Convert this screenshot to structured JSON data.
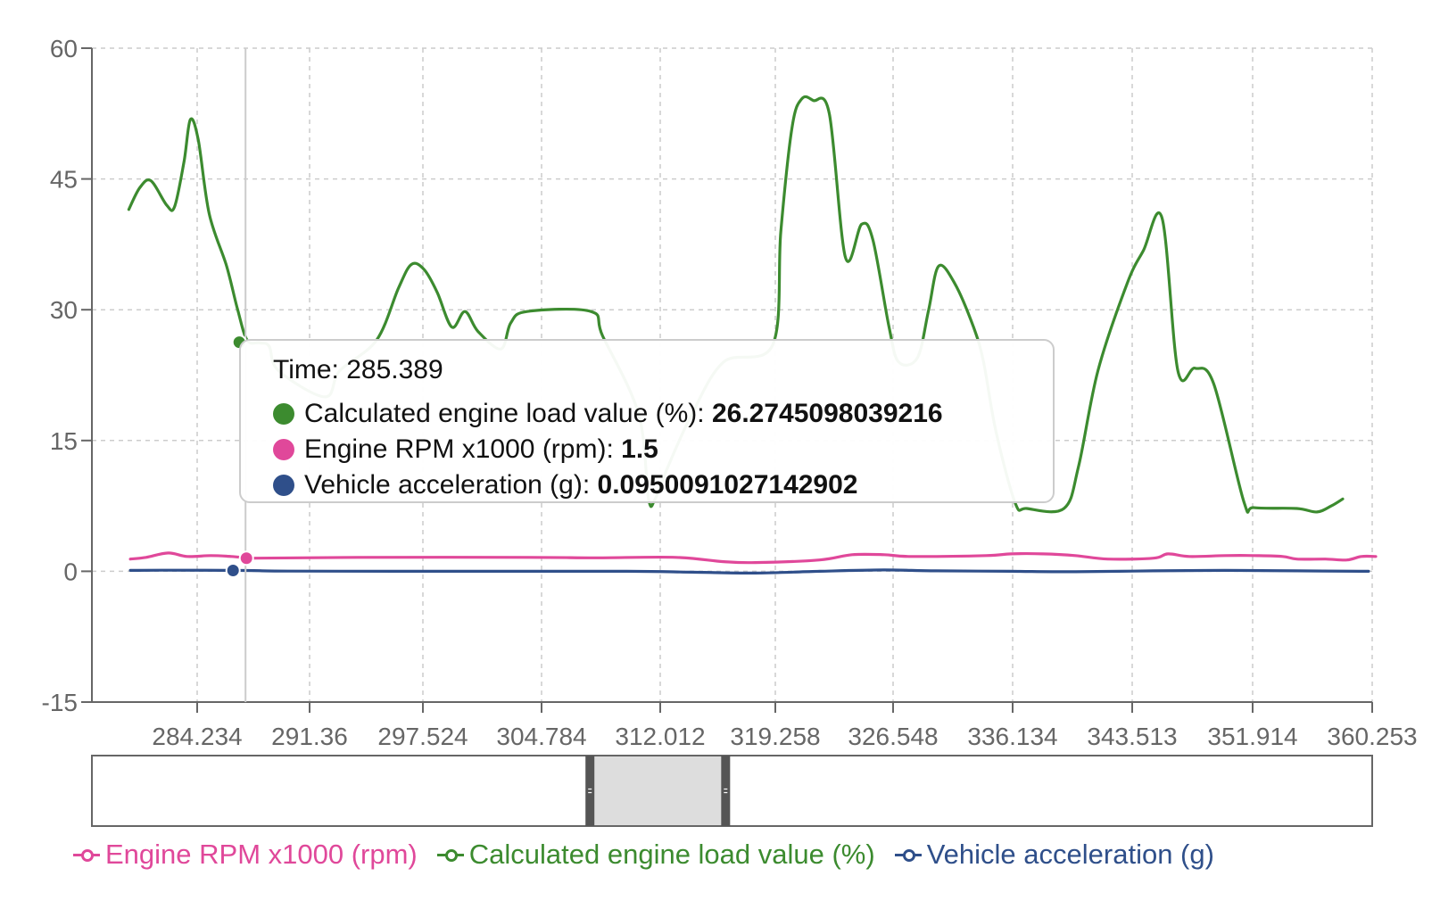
{
  "chart_data": {
    "type": "line",
    "x_ticks": [
      "284.234",
      "291.36",
      "297.524",
      "304.784",
      "312.012",
      "319.258",
      "326.548",
      "336.134",
      "343.513",
      "351.914",
      "360.253"
    ],
    "y_ticks": [
      -15,
      0,
      15,
      30,
      45,
      60
    ],
    "ylim": [
      -15,
      60
    ],
    "grid": true,
    "legend_position": "bottom",
    "series": [
      {
        "name": "Calculated engine load value (%)",
        "color": "#3c8b2f",
        "points": [
          [
            279.9,
            41.5
          ],
          [
            280.6,
            44.0
          ],
          [
            281.3,
            44.8
          ],
          [
            282.3,
            42.0
          ],
          [
            282.8,
            41.8
          ],
          [
            283.4,
            47.0
          ],
          [
            283.8,
            51.8
          ],
          [
            284.3,
            49.5
          ],
          [
            285.0,
            41.0
          ],
          [
            286.1,
            35.0
          ],
          [
            286.8,
            30.0
          ],
          [
            287.4,
            26.5
          ],
          [
            288.2,
            26.2
          ],
          [
            288.8,
            25.8
          ],
          [
            289.4,
            23.0
          ],
          [
            292.2,
            20.0
          ],
          [
            293.0,
            23.0
          ],
          [
            295.0,
            26.5
          ],
          [
            296.2,
            32.5
          ],
          [
            296.9,
            35.2
          ],
          [
            297.6,
            34.6
          ],
          [
            298.4,
            32.0
          ],
          [
            299.3,
            28.0
          ],
          [
            300.1,
            29.8
          ],
          [
            300.9,
            27.5
          ],
          [
            302.3,
            25.5
          ],
          [
            302.9,
            28.5
          ],
          [
            303.9,
            29.8
          ],
          [
            307.8,
            29.8
          ],
          [
            308.5,
            27.0
          ],
          [
            310.7,
            18.0
          ],
          [
            311.3,
            8.3
          ],
          [
            311.7,
            8.3
          ],
          [
            312.5,
            12.0
          ],
          [
            314.0,
            18.0
          ],
          [
            316.0,
            24.0
          ],
          [
            319.1,
            26.0
          ],
          [
            319.6,
            39.0
          ],
          [
            320.3,
            51.0
          ],
          [
            320.9,
            54.2
          ],
          [
            321.6,
            54.0
          ],
          [
            322.6,
            52.5
          ],
          [
            323.6,
            36.0
          ],
          [
            324.6,
            39.8
          ],
          [
            325.3,
            38.0
          ],
          [
            326.3,
            28.0
          ],
          [
            327.0,
            24.0
          ],
          [
            328.5,
            24.5
          ],
          [
            329.4,
            30.0
          ],
          [
            330.2,
            35.0
          ],
          [
            331.5,
            33.0
          ],
          [
            333.0,
            28.0
          ],
          [
            333.8,
            24.0
          ],
          [
            334.8,
            16.0
          ],
          [
            336.3,
            7.8
          ],
          [
            337.0,
            7.2
          ],
          [
            339.3,
            7.2
          ],
          [
            340.2,
            12.0
          ],
          [
            341.4,
            23.0
          ],
          [
            343.2,
            33.0
          ],
          [
            344.3,
            36.8
          ],
          [
            345.6,
            40.5
          ],
          [
            346.7,
            23.0
          ],
          [
            347.9,
            23.3
          ],
          [
            349.2,
            21.5
          ],
          [
            351.3,
            8.0
          ],
          [
            352.0,
            7.3
          ],
          [
            355.0,
            7.2
          ],
          [
            356.4,
            6.8
          ],
          [
            357.4,
            7.5
          ],
          [
            358.2,
            8.3
          ]
        ]
      },
      {
        "name": "Engine RPM x1000 (rpm)",
        "color": "#e0489a",
        "points": [
          [
            280.0,
            1.4
          ],
          [
            281.0,
            1.6
          ],
          [
            282.4,
            2.1
          ],
          [
            283.6,
            1.7
          ],
          [
            285.1,
            1.8
          ],
          [
            286.4,
            1.7
          ],
          [
            287.3,
            1.55
          ],
          [
            288.0,
            1.5
          ],
          [
            294.0,
            1.6
          ],
          [
            304.0,
            1.6
          ],
          [
            308.0,
            1.55
          ],
          [
            313.0,
            1.6
          ],
          [
            316.0,
            1.1
          ],
          [
            318.0,
            1.0
          ],
          [
            322.0,
            1.3
          ],
          [
            324.0,
            1.9
          ],
          [
            326.0,
            1.9
          ],
          [
            328.0,
            1.7
          ],
          [
            334.0,
            1.8
          ],
          [
            336.0,
            2.0
          ],
          [
            338.0,
            2.0
          ],
          [
            340.0,
            1.8
          ],
          [
            342.0,
            1.4
          ],
          [
            345.0,
            1.5
          ],
          [
            346.0,
            2.0
          ],
          [
            347.5,
            1.7
          ],
          [
            350.0,
            1.8
          ],
          [
            352.0,
            1.8
          ],
          [
            354.0,
            1.7
          ],
          [
            355.0,
            1.4
          ],
          [
            357.0,
            1.4
          ],
          [
            358.5,
            1.3
          ],
          [
            359.5,
            1.7
          ],
          [
            360.5,
            1.7
          ]
        ]
      },
      {
        "name": "Vehicle acceleration (g)",
        "color": "#2f4f8a",
        "points": [
          [
            280.0,
            0.1
          ],
          [
            282.0,
            0.12
          ],
          [
            287.3,
            0.095
          ],
          [
            290.0,
            0.02
          ],
          [
            300.0,
            0.0
          ],
          [
            310.0,
            0.0
          ],
          [
            314.0,
            -0.1
          ],
          [
            318.0,
            -0.2
          ],
          [
            322.0,
            0.0
          ],
          [
            326.0,
            0.15
          ],
          [
            330.0,
            0.05
          ],
          [
            336.0,
            0.0
          ],
          [
            340.0,
            -0.05
          ],
          [
            345.0,
            0.05
          ],
          [
            350.0,
            0.1
          ],
          [
            355.0,
            0.05
          ],
          [
            360.0,
            0.0
          ]
        ]
      }
    ],
    "hover": {
      "x": 287.3,
      "label": "Time: 285.389",
      "rows": [
        {
          "name": "Calculated engine load value (%)",
          "value": "26.2745098039216",
          "y": 26.27,
          "color": "#3c8b2f"
        },
        {
          "name": "Engine RPM x1000 (rpm)",
          "value": "1.5",
          "y": 1.5,
          "color": "#e0489a"
        },
        {
          "name": "Vehicle acceleration (g)",
          "value": "0.0950091027142902",
          "y": 0.095,
          "color": "#2f4f8a"
        }
      ]
    },
    "brush": {
      "selection_start_fraction": 0.389,
      "selection_end_fraction": 0.495
    }
  },
  "legend": [
    {
      "name": "Engine RPM x1000 (rpm)",
      "color": "#e0489a"
    },
    {
      "name": "Calculated engine load value (%)",
      "color": "#3c8b2f"
    },
    {
      "name": "Vehicle acceleration (g)",
      "color": "#2f4f8a"
    }
  ],
  "colors": {
    "axis": "#666666",
    "grid": "#cccccc",
    "brush_fill": "#dddddd",
    "brush_handle": "#555555",
    "cursor": "#cccccc"
  }
}
